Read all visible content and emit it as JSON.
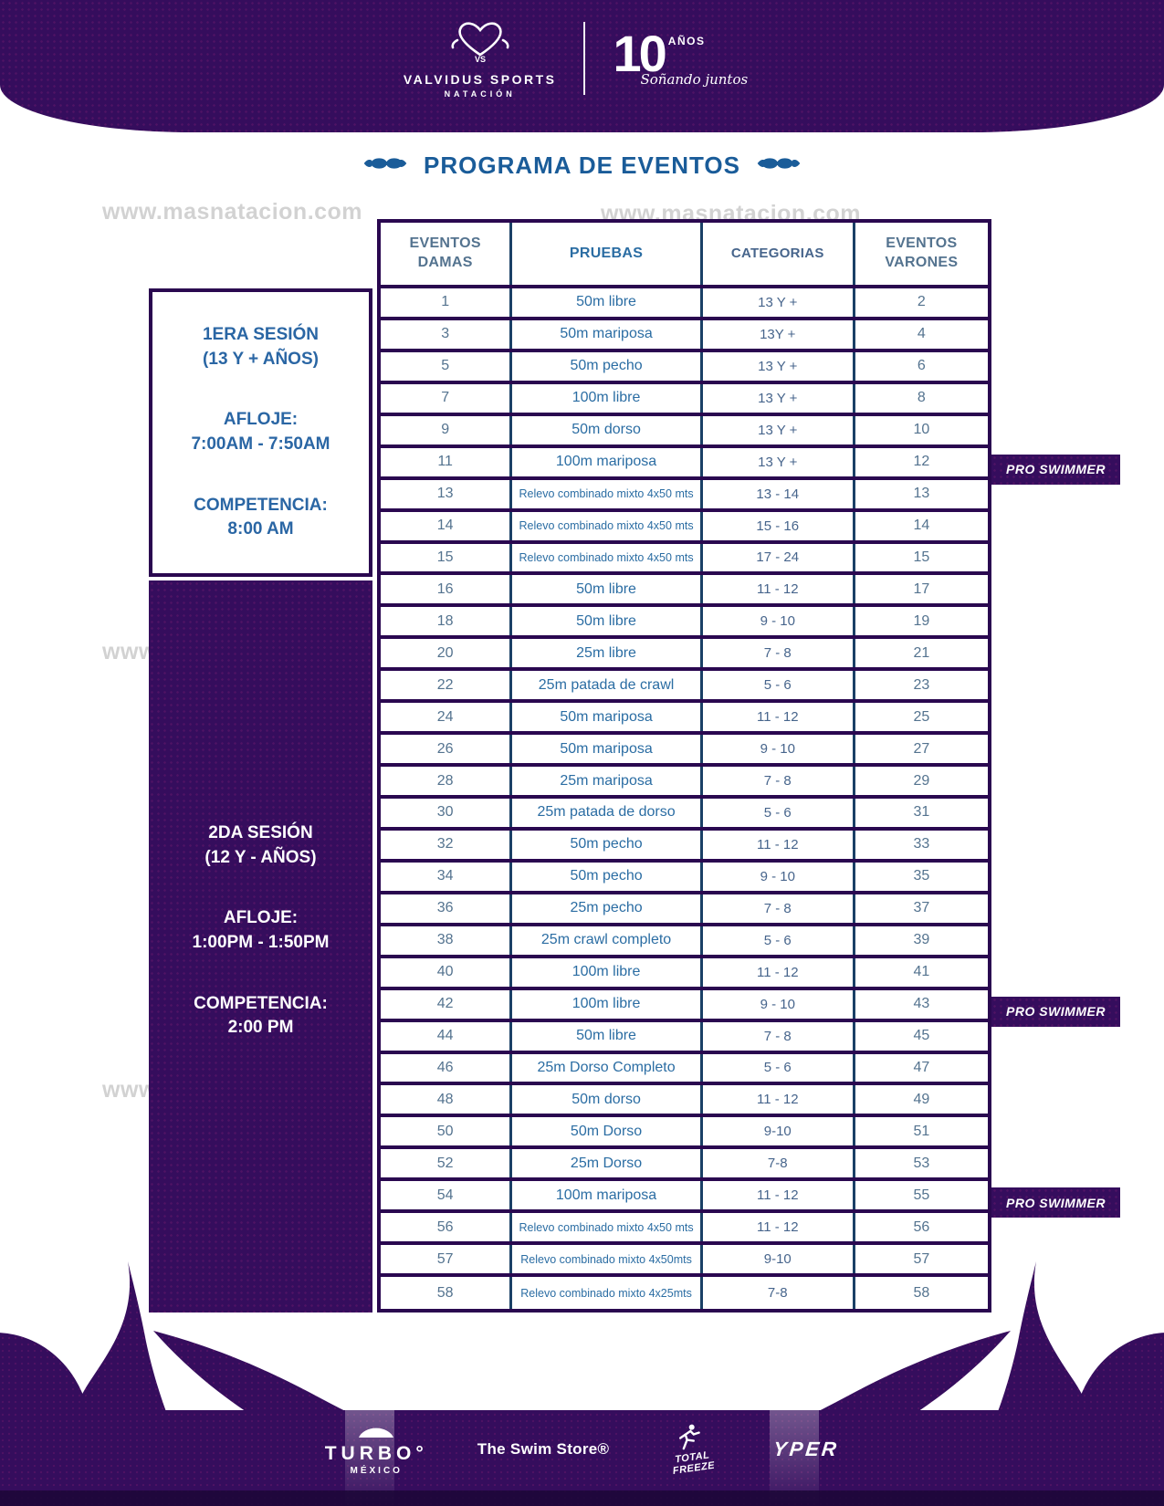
{
  "header": {
    "brand_name": "VALVIDUS SPORTS",
    "brand_subtitle": "NATACIÓN",
    "anniversary_number": "10",
    "anniversary_label": "AÑOS",
    "anniversary_tagline": "Soñando juntos"
  },
  "title": "PROGRAMA DE EVENTOS",
  "watermark": {
    "text": "www.masnatacion.com"
  },
  "sessions": [
    {
      "name": "1ERA SESIÓN",
      "ages": "(13 Y + AÑOS)",
      "warmup_label": "AFLOJE:",
      "warmup_time": "7:00AM - 7:50AM",
      "competition_label": "COMPETENCIA:",
      "competition_time": "8:00 AM"
    },
    {
      "name": "2DA SESIÓN",
      "ages": "(12 Y - AÑOS)",
      "warmup_label": "AFLOJE:",
      "warmup_time": "1:00PM - 1:50PM",
      "competition_label": "COMPETENCIA:",
      "competition_time": "2:00 PM"
    }
  ],
  "table": {
    "headers": [
      "EVENTOS DAMAS",
      "PRUEBAS",
      "CATEGORIAS",
      "EVENTOS VARONES"
    ],
    "rows": [
      {
        "damas": "1",
        "prueba": "50m libre",
        "categoria": "13 Y +",
        "varones": "2",
        "small": false
      },
      {
        "damas": "3",
        "prueba": "50m mariposa",
        "categoria": "13Y +",
        "varones": "4",
        "small": false
      },
      {
        "damas": "5",
        "prueba": "50m pecho",
        "categoria": "13 Y +",
        "varones": "6",
        "small": false
      },
      {
        "damas": "7",
        "prueba": "100m libre",
        "categoria": "13 Y +",
        "varones": "8",
        "small": false
      },
      {
        "damas": "9",
        "prueba": "50m dorso",
        "categoria": "13 Y +",
        "varones": "10",
        "small": false
      },
      {
        "damas": "11",
        "prueba": "100m mariposa",
        "categoria": "13 Y +",
        "varones": "12",
        "small": false
      },
      {
        "damas": "13",
        "prueba": "Relevo combinado mixto 4x50 mts",
        "categoria": "13 - 14",
        "varones": "13",
        "small": true
      },
      {
        "damas": "14",
        "prueba": "Relevo combinado mixto 4x50 mts",
        "categoria": "15 - 16",
        "varones": "14",
        "small": true
      },
      {
        "damas": "15",
        "prueba": "Relevo combinado mixto 4x50 mts",
        "categoria": "17 - 24",
        "varones": "15",
        "small": true
      },
      {
        "damas": "16",
        "prueba": "50m libre",
        "categoria": "11 - 12",
        "varones": "17",
        "small": false
      },
      {
        "damas": "18",
        "prueba": "50m libre",
        "categoria": "9 - 10",
        "varones": "19",
        "small": false
      },
      {
        "damas": "20",
        "prueba": "25m libre",
        "categoria": "7 - 8",
        "varones": "21",
        "small": false
      },
      {
        "damas": "22",
        "prueba": "25m patada de crawl",
        "categoria": "5 - 6",
        "varones": "23",
        "small": false
      },
      {
        "damas": "24",
        "prueba": "50m mariposa",
        "categoria": "11 - 12",
        "varones": "25",
        "small": false
      },
      {
        "damas": "26",
        "prueba": "50m mariposa",
        "categoria": "9 - 10",
        "varones": "27",
        "small": false
      },
      {
        "damas": "28",
        "prueba": "25m mariposa",
        "categoria": "7 - 8",
        "varones": "29",
        "small": false
      },
      {
        "damas": "30",
        "prueba": "25m patada de dorso",
        "categoria": "5 - 6",
        "varones": "31",
        "small": false
      },
      {
        "damas": "32",
        "prueba": "50m pecho",
        "categoria": "11 - 12",
        "varones": "33",
        "small": false
      },
      {
        "damas": "34",
        "prueba": "50m pecho",
        "categoria": "9 - 10",
        "varones": "35",
        "small": false
      },
      {
        "damas": "36",
        "prueba": "25m pecho",
        "categoria": "7 - 8",
        "varones": "37",
        "small": false
      },
      {
        "damas": "38",
        "prueba": "25m crawl completo",
        "categoria": "5 - 6",
        "varones": "39",
        "small": false
      },
      {
        "damas": "40",
        "prueba": "100m libre",
        "categoria": "11 - 12",
        "varones": "41",
        "small": false
      },
      {
        "damas": "42",
        "prueba": "100m libre",
        "categoria": "9 - 10",
        "varones": "43",
        "small": false
      },
      {
        "damas": "44",
        "prueba": "50m libre",
        "categoria": "7 - 8",
        "varones": "45",
        "small": false
      },
      {
        "damas": "46",
        "prueba": "25m Dorso Completo",
        "categoria": "5 - 6",
        "varones": "47",
        "small": false
      },
      {
        "damas": "48",
        "prueba": "50m dorso",
        "categoria": "11 - 12",
        "varones": "49",
        "small": false
      },
      {
        "damas": "50",
        "prueba": "50m Dorso",
        "categoria": "9-10",
        "varones": "51",
        "small": false
      },
      {
        "damas": "52",
        "prueba": "25m Dorso",
        "categoria": "7-8",
        "varones": "53",
        "small": false
      },
      {
        "damas": "54",
        "prueba": "100m mariposa",
        "categoria": "11 - 12",
        "varones": "55",
        "small": false
      },
      {
        "damas": "56",
        "prueba": "Relevo combinado mixto 4x50 mts",
        "categoria": "11 - 12",
        "varones": "56",
        "small": true
      },
      {
        "damas": "57",
        "prueba": "Relevo combinado mixto 4x50mts",
        "categoria": "9-10",
        "varones": "57",
        "small": true
      },
      {
        "damas": "58",
        "prueba": "Relevo combinado mixto 4x25mts",
        "categoria": "7-8",
        "varones": "58",
        "small": true
      }
    ]
  },
  "pro_swimmer_badges": [
    {
      "label": "PRO SWIMMER",
      "row_index": 5
    },
    {
      "label": "PRO SWIMMER",
      "row_index": 22
    },
    {
      "label": "PRO SWIMMER",
      "row_index": 28
    }
  ],
  "footer": {
    "sponsors": {
      "turbo": "TURBO°",
      "turbo_sub": "MÉXICO",
      "swim_store": "The Swim Store®",
      "total_freeze": "TOTAL FREEZE",
      "yper": "YPER"
    }
  },
  "colors": {
    "banner_purple": "#350d5d",
    "table_border_purple": "#2a0850",
    "table_divider_blue": "#1a4066",
    "title_blue": "#1a5c99",
    "prueba_text_blue": "#2b6da3",
    "session_text_blue": "#2a66a4"
  }
}
